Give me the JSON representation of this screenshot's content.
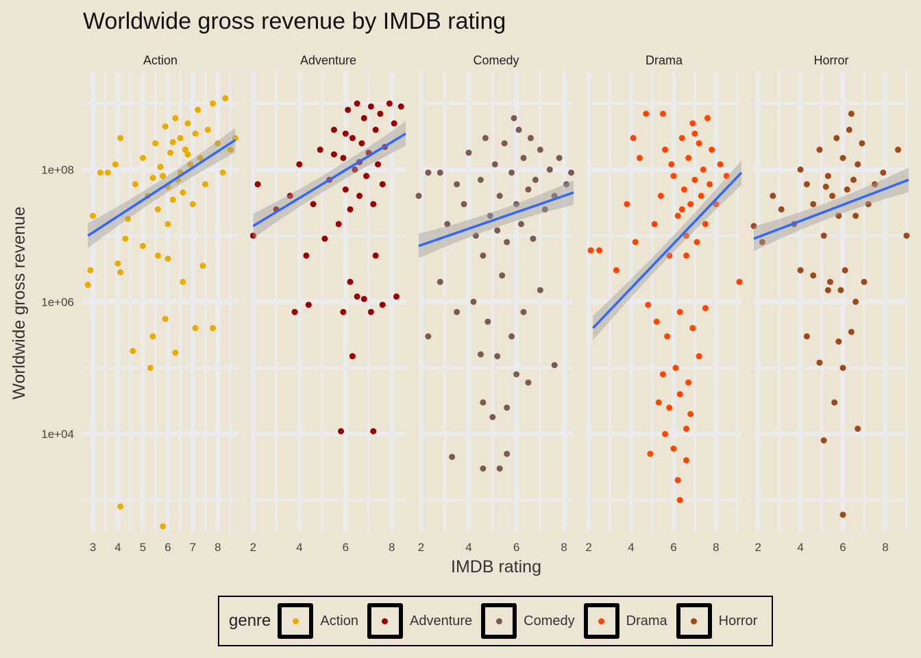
{
  "chart_data": {
    "type": "scatter",
    "title": "Worldwide gross revenue by IMDB rating",
    "xlabel": "IMDB rating",
    "ylabel": "Worldwide gross revenue",
    "yscale": "log10",
    "ylim": [
      300,
      3000000000.0
    ],
    "y_ticks": [
      {
        "value": 10000,
        "label": "1e+04"
      },
      {
        "value": 1000000,
        "label": "1e+06"
      },
      {
        "value": 100000000,
        "label": "1e+08"
      }
    ],
    "legend": {
      "title": "genre",
      "position": "bottom"
    },
    "grid": true,
    "colors": {
      "background": "#ede5d4",
      "grid": "#ebebeb",
      "trend": "#3366ff",
      "band": "#a0a0a0"
    },
    "facets": [
      {
        "name": "Action",
        "color": "#e8ac00",
        "xlim": [
          2.6,
          8.8
        ],
        "x_ticks": [
          3,
          4,
          5,
          6,
          7,
          8
        ],
        "trend": {
          "x": [
            2.8,
            8.7
          ],
          "y": [
            10000000,
            280000000
          ]
        },
        "points": [
          [
            5.8,
            400
          ],
          [
            4.1,
            800
          ],
          [
            2.8,
            1800000
          ],
          [
            2.9,
            3000000
          ],
          [
            4.1,
            2800000
          ],
          [
            4.6,
            180000
          ],
          [
            5.3,
            100000
          ],
          [
            5.4,
            300000
          ],
          [
            5.9,
            550000
          ],
          [
            6.3,
            170000
          ],
          [
            7.1,
            400000
          ],
          [
            7.8,
            400000
          ],
          [
            4.0,
            3800000
          ],
          [
            4.3,
            9000000
          ],
          [
            5.0,
            7000000
          ],
          [
            5.6,
            5000000
          ],
          [
            6.0,
            4500000
          ],
          [
            6.6,
            2000000
          ],
          [
            7.4,
            3500000
          ],
          [
            3.0,
            20000000
          ],
          [
            3.3,
            90000000
          ],
          [
            3.6,
            90000000
          ],
          [
            3.9,
            120000000
          ],
          [
            4.1,
            300000000
          ],
          [
            4.4,
            18000000
          ],
          [
            4.7,
            60000000
          ],
          [
            5.0,
            150000000
          ],
          [
            5.2,
            40000000
          ],
          [
            5.5,
            250000000
          ],
          [
            5.6,
            25000000
          ],
          [
            5.8,
            80000000
          ],
          [
            5.9,
            450000000
          ],
          [
            6.0,
            15000000
          ],
          [
            6.1,
            180000000
          ],
          [
            6.2,
            35000000
          ],
          [
            6.3,
            600000000
          ],
          [
            6.4,
            70000000
          ],
          [
            6.5,
            300000000
          ],
          [
            6.6,
            45000000
          ],
          [
            6.7,
            200000000
          ],
          [
            6.8,
            500000000
          ],
          [
            6.9,
            120000000
          ],
          [
            7.0,
            30000000
          ],
          [
            7.1,
            350000000
          ],
          [
            7.2,
            800000000
          ],
          [
            7.3,
            150000000
          ],
          [
            7.5,
            60000000
          ],
          [
            7.6,
            400000000
          ],
          [
            7.8,
            1000000000
          ],
          [
            8.0,
            250000000
          ],
          [
            8.2,
            90000000
          ],
          [
            8.3,
            1200000000
          ],
          [
            8.5,
            200000000
          ],
          [
            8.7,
            300000000
          ],
          [
            5.7,
            110000000
          ],
          [
            6.0,
            55000000
          ],
          [
            6.2,
            260000000
          ],
          [
            6.5,
            90000000
          ],
          [
            6.8,
            170000000
          ],
          [
            5.4,
            75000000
          ]
        ]
      },
      {
        "name": "Adventure",
        "color": "#990000",
        "xlim": [
          1.9,
          8.6
        ],
        "x_ticks": [
          2,
          4,
          6,
          8
        ],
        "trend": {
          "x": [
            2.0,
            8.6
          ],
          "y": [
            14000000,
            350000000
          ]
        },
        "points": [
          [
            5.8,
            11000
          ],
          [
            7.2,
            11000
          ],
          [
            6.3,
            150000
          ],
          [
            3.8,
            700000
          ],
          [
            4.4,
            900000
          ],
          [
            5.9,
            700000
          ],
          [
            6.2,
            2000000
          ],
          [
            6.5,
            1200000
          ],
          [
            6.8,
            1100000
          ],
          [
            7.1,
            700000
          ],
          [
            7.6,
            900000
          ],
          [
            8.2,
            1200000
          ],
          [
            2.0,
            10000000
          ],
          [
            2.2,
            60000000
          ],
          [
            3.0,
            25000000
          ],
          [
            3.6,
            40000000
          ],
          [
            4.0,
            120000000
          ],
          [
            4.3,
            5000000
          ],
          [
            4.6,
            30000000
          ],
          [
            4.9,
            200000000
          ],
          [
            5.1,
            9000000
          ],
          [
            5.3,
            70000000
          ],
          [
            5.5,
            400000000
          ],
          [
            5.7,
            15000000
          ],
          [
            5.9,
            150000000
          ],
          [
            6.0,
            50000000
          ],
          [
            6.1,
            800000000
          ],
          [
            6.2,
            25000000
          ],
          [
            6.3,
            300000000
          ],
          [
            6.4,
            100000000
          ],
          [
            6.5,
            1000000000
          ],
          [
            6.6,
            40000000
          ],
          [
            6.7,
            250000000
          ],
          [
            6.8,
            600000000
          ],
          [
            6.9,
            80000000
          ],
          [
            7.0,
            180000000
          ],
          [
            7.1,
            900000000
          ],
          [
            7.2,
            30000000
          ],
          [
            7.3,
            400000000
          ],
          [
            7.4,
            120000000
          ],
          [
            7.5,
            700000000
          ],
          [
            7.6,
            60000000
          ],
          [
            7.7,
            220000000
          ],
          [
            7.9,
            1000000000
          ],
          [
            8.1,
            500000000
          ],
          [
            8.4,
            900000000
          ],
          [
            7.3,
            5000000
          ],
          [
            5.5,
            170000000
          ],
          [
            6.0,
            350000000
          ],
          [
            6.6,
            130000000
          ]
        ]
      },
      {
        "name": "Comedy",
        "color": "#7a5a52",
        "xlim": [
          1.9,
          8.4
        ],
        "x_ticks": [
          2,
          4,
          6,
          8
        ],
        "trend": {
          "x": [
            1.9,
            8.4
          ],
          "y": [
            7000000,
            45000000
          ]
        },
        "points": [
          [
            3.3,
            4500
          ],
          [
            4.6,
            3000
          ],
          [
            5.3,
            3000
          ],
          [
            5.6,
            5000
          ],
          [
            4.6,
            30000
          ],
          [
            5.0,
            18000
          ],
          [
            5.6,
            25000
          ],
          [
            4.5,
            160000
          ],
          [
            5.2,
            150000
          ],
          [
            6.0,
            80000
          ],
          [
            6.5,
            60000
          ],
          [
            7.6,
            110000
          ],
          [
            2.3,
            300000
          ],
          [
            2.8,
            2000000
          ],
          [
            3.5,
            700000
          ],
          [
            4.2,
            1000000
          ],
          [
            4.8,
            500000
          ],
          [
            5.4,
            2500000
          ],
          [
            5.8,
            300000
          ],
          [
            6.3,
            700000
          ],
          [
            7.0,
            1500000
          ],
          [
            1.9,
            40000000
          ],
          [
            2.3,
            90000000
          ],
          [
            2.8,
            90000000
          ],
          [
            3.1,
            15000000
          ],
          [
            3.5,
            60000000
          ],
          [
            3.8,
            30000000
          ],
          [
            4.0,
            180000000
          ],
          [
            4.3,
            10000000
          ],
          [
            4.5,
            70000000
          ],
          [
            4.7,
            300000000
          ],
          [
            4.9,
            20000000
          ],
          [
            5.1,
            120000000
          ],
          [
            5.3,
            40000000
          ],
          [
            5.5,
            250000000
          ],
          [
            5.6,
            8000000
          ],
          [
            5.8,
            90000000
          ],
          [
            6.0,
            30000000
          ],
          [
            6.1,
            400000000
          ],
          [
            6.2,
            15000000
          ],
          [
            6.3,
            150000000
          ],
          [
            6.5,
            50000000
          ],
          [
            6.6,
            300000000
          ],
          [
            6.8,
            70000000
          ],
          [
            7.0,
            200000000
          ],
          [
            7.2,
            25000000
          ],
          [
            7.4,
            100000000
          ],
          [
            7.6,
            40000000
          ],
          [
            7.8,
            150000000
          ],
          [
            8.1,
            60000000
          ],
          [
            8.3,
            90000000
          ],
          [
            5.9,
            600000000
          ],
          [
            5.2,
            12000000
          ],
          [
            6.7,
            9000000
          ],
          [
            4.6,
            5000000
          ]
        ]
      },
      {
        "name": "Drama",
        "color": "#ff4500",
        "xlim": [
          1.9,
          9.2
        ],
        "x_ticks": [
          2,
          4,
          6,
          8
        ],
        "trend": {
          "x": [
            2.2,
            9.2
          ],
          "y": [
            400000,
            90000000
          ]
        },
        "points": [
          [
            6.3,
            1000
          ],
          [
            4.9,
            5000
          ],
          [
            6.2,
            2000
          ],
          [
            6.6,
            4000
          ],
          [
            5.6,
            10000
          ],
          [
            6.0,
            6000
          ],
          [
            6.6,
            12000
          ],
          [
            5.3,
            30000
          ],
          [
            5.8,
            25000
          ],
          [
            6.3,
            40000
          ],
          [
            6.8,
            20000
          ],
          [
            5.5,
            80000
          ],
          [
            6.1,
            100000
          ],
          [
            6.7,
            60000
          ],
          [
            7.2,
            150000
          ],
          [
            4.8,
            900000
          ],
          [
            5.2,
            500000
          ],
          [
            5.7,
            300000
          ],
          [
            6.3,
            700000
          ],
          [
            6.9,
            400000
          ],
          [
            7.5,
            800000
          ],
          [
            2.1,
            6000000
          ],
          [
            2.5,
            6000000
          ],
          [
            3.3,
            3000000
          ],
          [
            3.8,
            30000000
          ],
          [
            4.2,
            8000000
          ],
          [
            4.7,
            700000000
          ],
          [
            5.1,
            15000000
          ],
          [
            5.4,
            40000000
          ],
          [
            5.6,
            200000000
          ],
          [
            5.8,
            5000000
          ],
          [
            6.0,
            80000000
          ],
          [
            6.2,
            20000000
          ],
          [
            6.4,
            300000000
          ],
          [
            6.5,
            50000000
          ],
          [
            6.6,
            10000000
          ],
          [
            6.7,
            150000000
          ],
          [
            6.8,
            30000000
          ],
          [
            6.9,
            500000000
          ],
          [
            7.0,
            70000000
          ],
          [
            7.1,
            8000000
          ],
          [
            7.2,
            250000000
          ],
          [
            7.3,
            40000000
          ],
          [
            7.4,
            100000000
          ],
          [
            7.5,
            15000000
          ],
          [
            7.6,
            600000000
          ],
          [
            7.7,
            60000000
          ],
          [
            7.8,
            200000000
          ],
          [
            8.0,
            30000000
          ],
          [
            8.2,
            120000000
          ],
          [
            8.5,
            80000000
          ],
          [
            9.1,
            2000000
          ],
          [
            4.4,
            150000000
          ],
          [
            4.1,
            300000000
          ],
          [
            5.9,
            120000000
          ],
          [
            6.4,
            25000000
          ],
          [
            7.0,
            350000000
          ],
          [
            6.6,
            5000000
          ],
          [
            5.5,
            700000000
          ]
        ]
      },
      {
        "name": "Horror",
        "color": "#9c4a1c",
        "xlim": [
          1.8,
          9.1
        ],
        "x_ticks": [
          2,
          4,
          6,
          8
        ],
        "trend": {
          "x": [
            1.8,
            9.1
          ],
          "y": [
            9000000,
            70000000
          ]
        },
        "points": [
          [
            6.0,
            600
          ],
          [
            5.1,
            8000
          ],
          [
            6.7,
            12000
          ],
          [
            5.6,
            30000
          ],
          [
            6.0,
            100000
          ],
          [
            4.9,
            120000
          ],
          [
            5.8,
            250000
          ],
          [
            4.3,
            300000
          ],
          [
            6.4,
            350000
          ],
          [
            5.3,
            1500000
          ],
          [
            5.9,
            1500000
          ],
          [
            6.6,
            1000000
          ],
          [
            4.0,
            3000000
          ],
          [
            4.6,
            2500000
          ],
          [
            5.4,
            2000000
          ],
          [
            6.1,
            3000000
          ],
          [
            7.0,
            2000000
          ],
          [
            1.8,
            14000000
          ],
          [
            2.2,
            8000000
          ],
          [
            2.7,
            40000000
          ],
          [
            3.1,
            25000000
          ],
          [
            3.7,
            15000000
          ],
          [
            4.0,
            100000000
          ],
          [
            4.3,
            60000000
          ],
          [
            4.6,
            30000000
          ],
          [
            4.9,
            200000000
          ],
          [
            5.1,
            10000000
          ],
          [
            5.3,
            80000000
          ],
          [
            5.5,
            40000000
          ],
          [
            5.7,
            300000000
          ],
          [
            5.8,
            20000000
          ],
          [
            6.0,
            150000000
          ],
          [
            6.2,
            50000000
          ],
          [
            6.3,
            400000000
          ],
          [
            6.5,
            70000000
          ],
          [
            6.7,
            120000000
          ],
          [
            6.9,
            250000000
          ],
          [
            7.2,
            30000000
          ],
          [
            7.5,
            60000000
          ],
          [
            7.9,
            90000000
          ],
          [
            8.6,
            200000000
          ],
          [
            9.0,
            10000000
          ],
          [
            6.4,
            700000000
          ],
          [
            5.2,
            55000000
          ],
          [
            6.6,
            20000000
          ]
        ]
      }
    ]
  }
}
